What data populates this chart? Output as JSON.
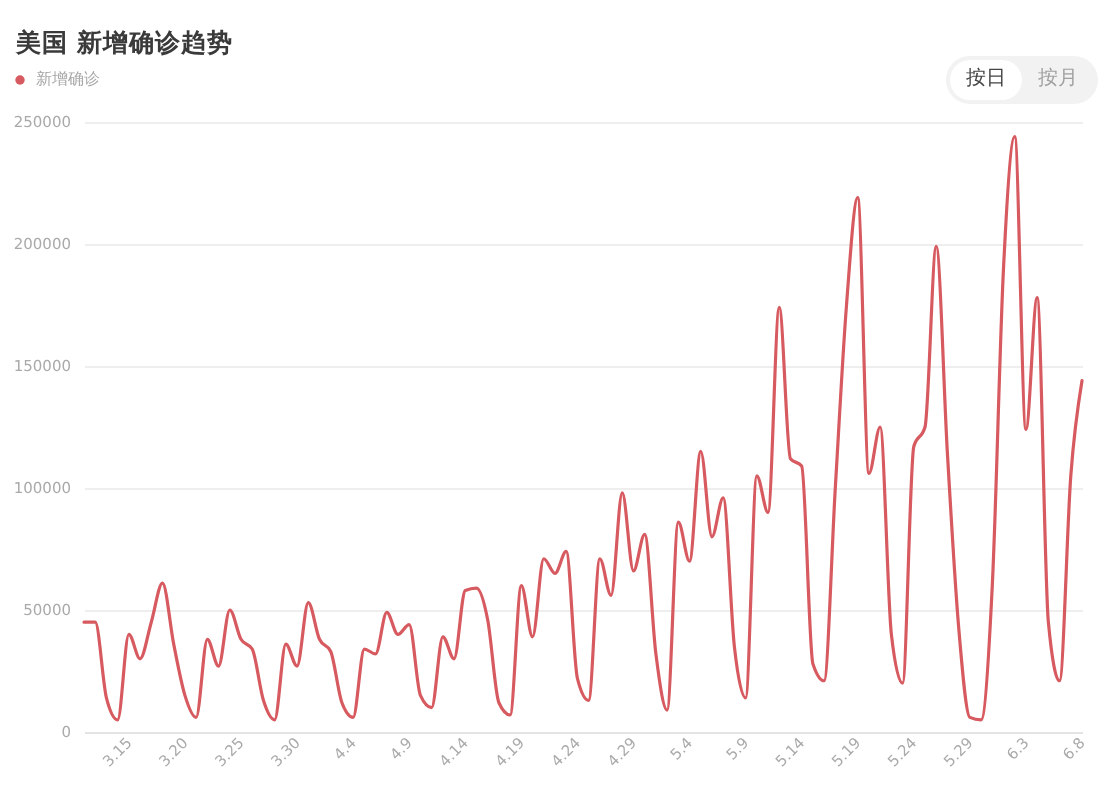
{
  "chart_data": {
    "type": "line",
    "title": "美国 新增确诊趋势",
    "x": [
      "--03-11",
      "--03-12",
      "--03-13",
      "--03-14",
      "--03-15",
      "--03-16",
      "--03-17",
      "--03-18",
      "--03-19",
      "--03-20",
      "--03-21",
      "--03-22",
      "--03-23",
      "--03-24",
      "--03-25",
      "--03-26",
      "--03-27",
      "--03-28",
      "--03-29",
      "--03-30",
      "--03-31",
      "--04-01",
      "--04-02",
      "--04-03",
      "--04-04",
      "--04-05",
      "--04-06",
      "--04-07",
      "--04-08",
      "--04-09",
      "--04-10",
      "--04-11",
      "--04-12",
      "--04-13",
      "--04-14",
      "--04-15",
      "--04-16",
      "--04-17",
      "--04-18",
      "--04-19",
      "--04-20",
      "--04-21",
      "--04-22",
      "--04-23",
      "--04-24",
      "--04-25",
      "--04-26",
      "--04-27",
      "--04-28",
      "--04-29",
      "--04-30",
      "--05-01",
      "--05-02",
      "--05-03",
      "--05-04",
      "--05-05",
      "--05-06",
      "--05-07",
      "--05-08",
      "--05-09",
      "--05-10",
      "--05-11",
      "--05-12",
      "--05-13",
      "--05-14",
      "--05-15",
      "--05-16",
      "--05-17",
      "--05-18",
      "--05-19",
      "--05-20",
      "--05-21",
      "--05-22",
      "--05-23",
      "--05-24",
      "--05-25",
      "--05-26",
      "--05-27",
      "--05-28",
      "--05-29",
      "--05-30",
      "--05-31",
      "--06-01",
      "--06-02",
      "--06-03",
      "--06-04",
      "--06-05",
      "--06-06",
      "--06-07",
      "--06-08"
    ],
    "series": [
      {
        "name": "新增确诊",
        "color": "#d65a5f",
        "values": [
          45000,
          45000,
          14000,
          5000,
          40000,
          30000,
          45000,
          61000,
          36000,
          15000,
          6000,
          38000,
          27000,
          50000,
          38000,
          34000,
          13000,
          5000,
          36000,
          27000,
          53000,
          38000,
          33000,
          12000,
          6000,
          34000,
          32000,
          49000,
          40000,
          44000,
          15000,
          10000,
          39000,
          30000,
          58000,
          59000,
          46000,
          12000,
          7000,
          60000,
          39000,
          71000,
          65000,
          74000,
          22000,
          13000,
          71000,
          56000,
          98000,
          66000,
          81000,
          32000,
          9000,
          86000,
          70000,
          115000,
          80000,
          96000,
          35000,
          14000,
          105000,
          90000,
          174000,
          112000,
          109000,
          28000,
          21000,
          100000,
          175000,
          219000,
          106000,
          125000,
          40000,
          20000,
          117000,
          125000,
          199000,
          114000,
          43000,
          6000,
          5000,
          60000,
          190000,
          244000,
          124000,
          178000,
          45000,
          21000,
          105000,
          144000
        ]
      }
    ],
    "xlim": [
      "--03-11",
      "--06-08"
    ],
    "xticks": [
      {
        "value": "--03-15",
        "label": "3.15"
      },
      {
        "value": "--03-20",
        "label": "3.20"
      },
      {
        "value": "--03-25",
        "label": "3.25"
      },
      {
        "value": "--03-30",
        "label": "3.30"
      },
      {
        "value": "--04-04",
        "label": "4.4"
      },
      {
        "value": "--04-09",
        "label": "4.9"
      },
      {
        "value": "--04-14",
        "label": "4.14"
      },
      {
        "value": "--04-19",
        "label": "4.19"
      },
      {
        "value": "--04-24",
        "label": "4.24"
      },
      {
        "value": "--04-29",
        "label": "4.29"
      },
      {
        "value": "--05-04",
        "label": "5.4"
      },
      {
        "value": "--05-09",
        "label": "5.9"
      },
      {
        "value": "--05-14",
        "label": "5.14"
      },
      {
        "value": "--05-19",
        "label": "5.19"
      },
      {
        "value": "--05-24",
        "label": "5.24"
      },
      {
        "value": "--05-29",
        "label": "5.29"
      },
      {
        "value": "--06-03",
        "label": "6.3"
      },
      {
        "value": "--06-08",
        "label": "6.8"
      }
    ],
    "ylim": [
      0,
      250000
    ],
    "yticks": [
      0,
      50000,
      100000,
      150000,
      200000,
      250000
    ],
    "grid": "y",
    "legend": "top left",
    "annotations": [
      "按日",
      "按月"
    ]
  }
}
